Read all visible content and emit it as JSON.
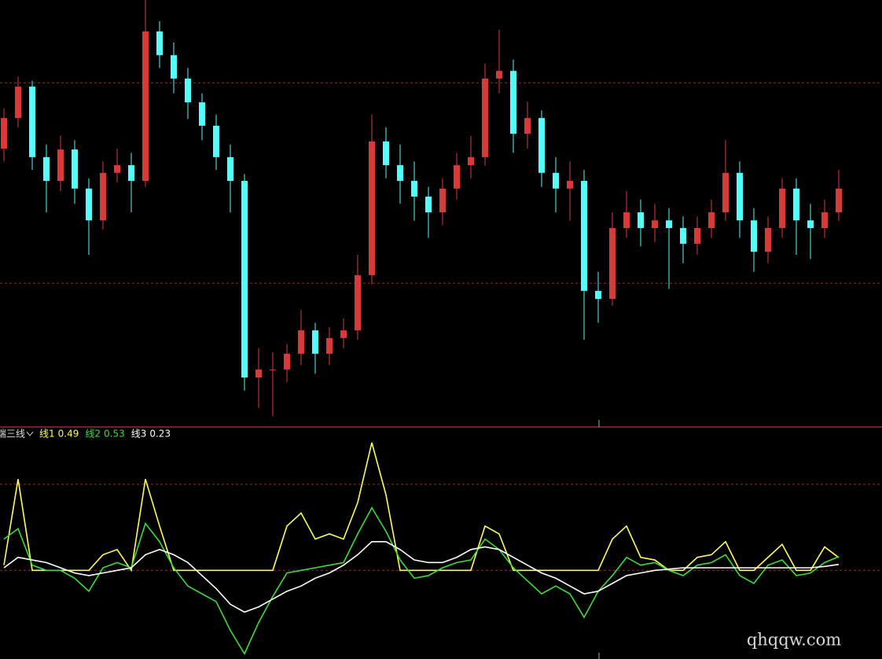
{
  "chart_data": [
    {
      "type": "candlestick",
      "candles": [
        [
          65,
          74.5,
          62,
          72.2
        ],
        [
          72.2,
          82,
          70,
          79.6
        ],
        [
          79.6,
          81,
          60,
          63.0
        ],
        [
          63.0,
          66,
          50,
          57.4
        ],
        [
          57.4,
          68,
          55,
          64.8
        ],
        [
          64.8,
          67,
          52,
          55.6
        ],
        [
          55.6,
          58,
          40,
          48.1
        ],
        [
          48.1,
          62,
          46,
          59.3
        ],
        [
          59.3,
          65,
          57,
          61.1
        ],
        [
          61.1,
          64,
          50,
          57.4
        ],
        [
          57.4,
          100,
          56,
          92.6
        ],
        [
          92.6,
          95,
          84,
          87.0
        ],
        [
          87.0,
          90,
          78,
          81.5
        ],
        [
          81.5,
          84,
          72,
          75.9
        ],
        [
          75.9,
          78,
          67,
          70.4
        ],
        [
          70.4,
          73,
          60,
          63.0
        ],
        [
          63.0,
          66,
          50,
          57.4
        ],
        [
          57.4,
          59,
          8,
          11.1
        ],
        [
          11.1,
          18,
          4,
          13.0
        ],
        [
          13.0,
          17,
          2,
          13.0
        ],
        [
          13.0,
          19,
          10,
          16.7
        ],
        [
          16.7,
          27,
          14,
          22.2
        ],
        [
          22.2,
          24,
          12,
          16.7
        ],
        [
          16.7,
          23,
          14,
          20.4
        ],
        [
          20.4,
          25,
          18,
          22.2
        ],
        [
          22.2,
          40,
          20,
          35.2
        ],
        [
          35.2,
          73,
          33,
          66.7
        ],
        [
          66.7,
          70,
          58,
          61.1
        ],
        [
          61.1,
          66,
          52,
          57.4
        ],
        [
          57.4,
          62,
          48,
          53.7
        ],
        [
          53.7,
          56,
          44,
          50.0
        ],
        [
          50.0,
          58,
          47,
          55.6
        ],
        [
          55.6,
          64,
          53,
          61.1
        ],
        [
          61.1,
          68,
          58,
          63.0
        ],
        [
          63.0,
          85,
          61,
          81.5
        ],
        [
          81.5,
          93,
          78,
          83.3
        ],
        [
          83.3,
          86,
          64,
          68.5
        ],
        [
          68.5,
          76,
          65,
          72.2
        ],
        [
          72.2,
          74,
          56,
          59.3
        ],
        [
          59.3,
          63,
          50,
          55.6
        ],
        [
          55.6,
          62,
          48,
          57.4
        ],
        [
          57.4,
          60,
          20,
          31.5
        ],
        [
          31.5,
          36,
          24,
          29.6
        ],
        [
          29.6,
          50,
          28,
          46.3
        ],
        [
          46.3,
          55,
          44,
          50.0
        ],
        [
          50.0,
          53,
          42,
          46.3
        ],
        [
          46.3,
          52,
          43,
          48.1
        ],
        [
          48.1,
          51,
          32,
          46.3
        ],
        [
          46.3,
          49,
          38,
          42.6
        ],
        [
          42.6,
          49,
          40,
          46.3
        ],
        [
          46.3,
          53,
          44,
          50.0
        ],
        [
          50.0,
          67,
          48,
          59.3
        ],
        [
          59.3,
          62,
          44,
          48.1
        ],
        [
          48.1,
          51,
          36,
          40.7
        ],
        [
          40.7,
          49,
          38,
          46.3
        ],
        [
          46.3,
          58,
          44,
          55.6
        ],
        [
          55.6,
          58,
          40,
          48.1
        ],
        [
          48.1,
          52,
          39,
          46.3
        ],
        [
          46.3,
          53,
          44,
          50.0
        ],
        [
          50.0,
          60,
          48,
          55.6
        ]
      ],
      "up_color": "#d83a3a",
      "down_color": "#54fcfc",
      "ylim": [
        0,
        100
      ],
      "levels": [
        80.5,
        33.3
      ]
    },
    {
      "type": "line",
      "title": "端三线",
      "series": [
        {
          "name": "线1",
          "color": "#ffff54",
          "values": [
            0.2,
            3.5,
            0,
            0,
            0,
            0,
            0,
            0.6,
            0.8,
            0,
            3.5,
            1.7,
            0,
            0,
            0,
            0,
            0,
            0,
            0,
            0,
            1.7,
            2.2,
            1.2,
            1.4,
            1.2,
            2.6,
            4.9,
            2.9,
            0,
            0,
            0,
            0,
            0,
            0,
            1.7,
            1.4,
            0,
            0,
            0,
            0,
            0,
            0,
            0,
            1.2,
            1.7,
            0.5,
            0.4,
            0,
            0,
            0.5,
            0.6,
            1.1,
            0,
            0,
            0.5,
            1.0,
            0,
            0,
            0.9,
            0.49
          ]
        },
        {
          "name": "线2",
          "color": "#3cdc3c",
          "values": [
            1.2,
            1.6,
            0.2,
            0,
            0,
            -0.3,
            -0.8,
            0.1,
            0.3,
            0.1,
            1.8,
            1.1,
            0.1,
            -0.6,
            -0.9,
            -1.2,
            -2.3,
            -3.2,
            -2.0,
            -1.0,
            -0.1,
            0,
            0.1,
            0.2,
            0.3,
            1.4,
            2.4,
            1.5,
            0.4,
            -0.3,
            -0.2,
            0.1,
            0.3,
            0.4,
            1.2,
            0.8,
            0.1,
            -0.4,
            -0.9,
            -0.6,
            -0.9,
            -1.8,
            -0.8,
            -0.2,
            0.5,
            0.2,
            0.3,
            0,
            -0.2,
            0.2,
            0.3,
            0.6,
            -0.2,
            -0.5,
            0.2,
            0.4,
            -0.2,
            -0.1,
            0.3,
            0.53
          ]
        },
        {
          "name": "线3",
          "color": "#ffffff",
          "values": [
            0.1,
            0.5,
            0.4,
            0.3,
            0.1,
            -0.1,
            -0.2,
            -0.1,
            0,
            0.1,
            0.6,
            0.8,
            0.6,
            0.3,
            -0.2,
            -0.7,
            -1.3,
            -1.6,
            -1.4,
            -1.1,
            -0.8,
            -0.6,
            -0.3,
            -0.1,
            0.2,
            0.6,
            1.1,
            1.1,
            0.8,
            0.4,
            0.3,
            0.3,
            0.5,
            0.8,
            0.9,
            0.8,
            0.5,
            0.2,
            -0.1,
            -0.3,
            -0.6,
            -0.9,
            -0.8,
            -0.5,
            -0.2,
            -0.1,
            0,
            0.05,
            0.1,
            0.1,
            0.1,
            0.1,
            0.1,
            0.1,
            0.1,
            0.1,
            0.1,
            0.1,
            0.15,
            0.23
          ]
        }
      ],
      "ylim": [
        -3.4,
        5.5
      ],
      "levels": [
        0,
        3.3
      ]
    }
  ],
  "watermark": "qhqqw.com"
}
